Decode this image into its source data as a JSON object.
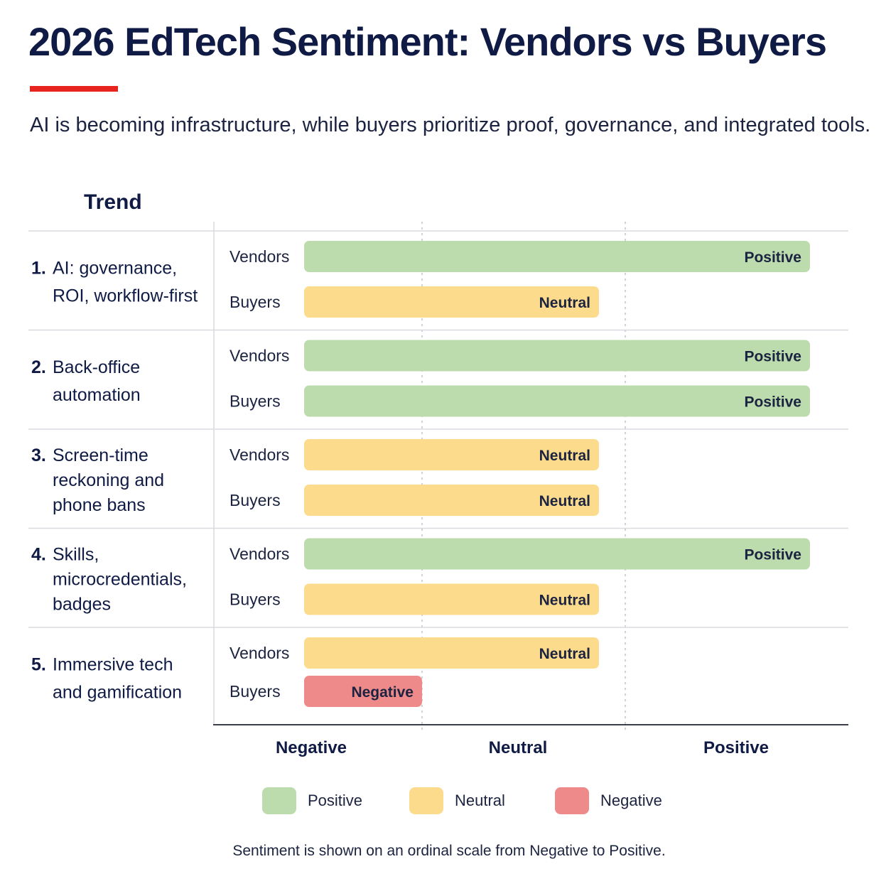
{
  "header": {
    "title": "2026 EdTech Sentiment: Vendors vs Buyers",
    "subtitle": "AI is becoming infrastructure, while buyers prioritize proof, governance, and integrated tools."
  },
  "column_header": "Trend",
  "colors": {
    "Positive": "#bddcae",
    "Neutral": "#fcdc8c",
    "Negative": "#ef8a8a",
    "accent": "#e8241e",
    "title": "#0f1b45"
  },
  "chart_data": {
    "type": "bar",
    "orientation": "horizontal",
    "scale": [
      "Negative",
      "Neutral",
      "Positive"
    ],
    "xtick_labels": [
      "Negative",
      "Neutral",
      "Positive"
    ],
    "categories": [
      {
        "number": "1.",
        "lines": [
          "AI: governance,",
          "ROI, workflow-first"
        ]
      },
      {
        "number": "2.",
        "lines": [
          "Back-office",
          "automation"
        ]
      },
      {
        "number": "3.",
        "lines": [
          "Screen-time",
          "reckoning and",
          "phone bans"
        ]
      },
      {
        "number": "4.",
        "lines": [
          "Skills,",
          "microcredentials,",
          "badges"
        ]
      },
      {
        "number": "5.",
        "lines": [
          "Immersive tech",
          "and gamification"
        ]
      }
    ],
    "series": [
      {
        "name": "Vendors",
        "values": [
          "Positive",
          "Positive",
          "Neutral",
          "Positive",
          "Neutral"
        ]
      },
      {
        "name": "Buyers",
        "values": [
          "Neutral",
          "Positive",
          "Neutral",
          "Neutral",
          "Negative"
        ]
      }
    ],
    "grid": true,
    "legend_position": "bottom-center"
  },
  "legend": [
    {
      "label": "Positive",
      "color": "#bddcae"
    },
    {
      "label": "Neutral",
      "color": "#fcdc8c"
    },
    {
      "label": "Negative",
      "color": "#ef8a8a"
    }
  ],
  "footnote": "Sentiment is shown on an ordinal scale from Negative to Positive."
}
